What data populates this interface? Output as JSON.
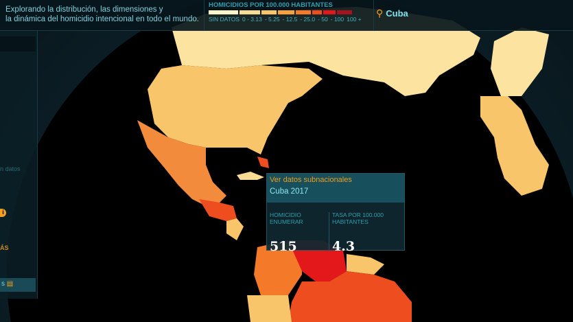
{
  "header": {
    "intro_line1": "Explorando la distribución, las dimensiones y",
    "intro_line2": "la dinámica del homicidio intencional en todo el mundo."
  },
  "legend": {
    "title": "HOMICIDIOS POR 100.000 HABITANTES",
    "items": [
      {
        "label": "SIN DATOS",
        "color": "#fdf6c8"
      },
      {
        "label": "0 - 3.13",
        "color": "#f7dc95"
      },
      {
        "label": "- 5.25",
        "color": "#f8c56a"
      },
      {
        "label": "- 12.5",
        "color": "#f6a23e"
      },
      {
        "label": "- 25.0",
        "color": "#f47a2a"
      },
      {
        "label": "- 50",
        "color": "#ee4d20"
      },
      {
        "label": "- 100",
        "color": "#e2181b"
      },
      {
        "label": "100 +",
        "color": "#a5141e"
      }
    ]
  },
  "search": {
    "icon": "search-icon",
    "value": "Cuba"
  },
  "sidebar": {
    "no_data": "n datos",
    "more": "ÁS",
    "button": "s"
  },
  "tooltip": {
    "link": "Ver datos subnacionales",
    "country": "Cuba 2017",
    "count_label": "HOMICIDIO ENUMERAR",
    "count_value": "515",
    "rate_label": "TASA POR 100.000 HABITANTES",
    "rate_value": "4.3"
  }
}
